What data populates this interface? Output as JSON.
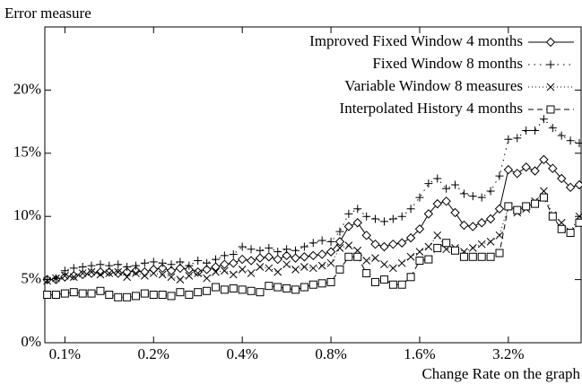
{
  "chart_data": {
    "type": "line",
    "y_label": "Error measure",
    "x_label": "Change Rate on the graph",
    "x_log": true,
    "xlim": [
      0.0855,
      5.65
    ],
    "ylim": [
      0,
      25
    ],
    "xticks": [
      {
        "value": 0.1,
        "label": "0.1%"
      },
      {
        "value": 0.2,
        "label": "0.2%"
      },
      {
        "value": 0.4,
        "label": "0.4%"
      },
      {
        "value": 0.8,
        "label": "0.8%"
      },
      {
        "value": 1.6,
        "label": "1.6%"
      },
      {
        "value": 3.2,
        "label": "3.2%"
      }
    ],
    "yticks": [
      {
        "value": 0,
        "label": "0%"
      },
      {
        "value": 5,
        "label": "5%"
      },
      {
        "value": 10,
        "label": "10%"
      },
      {
        "value": 15,
        "label": "15%"
      },
      {
        "value": 20,
        "label": "20%"
      }
    ],
    "legend": "top-right",
    "x": [
      0.0871,
      0.0933,
      0.1,
      0.1072,
      0.1149,
      0.1231,
      0.132,
      0.1414,
      0.1516,
      0.1625,
      0.1741,
      0.1866,
      0.2,
      0.2144,
      0.2297,
      0.2462,
      0.2639,
      0.2828,
      0.3031,
      0.3249,
      0.3482,
      0.3732,
      0.4,
      0.4287,
      0.4595,
      0.4925,
      0.5278,
      0.5657,
      0.6063,
      0.6498,
      0.6964,
      0.7464,
      0.8,
      0.8574,
      0.919,
      0.9849,
      1.056,
      1.131,
      1.213,
      1.3,
      1.393,
      1.493,
      1.6,
      1.715,
      1.838,
      1.97,
      2.111,
      2.263,
      2.425,
      2.599,
      2.786,
      2.986,
      3.2,
      3.43,
      3.676,
      3.94,
      4.222,
      4.525,
      4.85,
      5.198,
      5.571
    ],
    "series": [
      {
        "name": "Improved Fixed Window 4 months",
        "color": "#000000",
        "marker": "diamond",
        "line_style": "solid",
        "values": [
          5.0,
          5.0,
          5.2,
          5.3,
          5.4,
          5.5,
          5.6,
          5.6,
          5.5,
          5.6,
          5.7,
          5.6,
          5.8,
          5.9,
          5.7,
          5.9,
          5.8,
          5.6,
          5.8,
          6.0,
          6.2,
          6.3,
          6.6,
          6.5,
          6.7,
          6.8,
          6.6,
          6.9,
          6.7,
          6.8,
          6.9,
          7.0,
          7.2,
          8.0,
          9.2,
          9.5,
          8.5,
          7.8,
          7.6,
          7.8,
          7.9,
          8.3,
          9.0,
          10.2,
          11.0,
          11.2,
          10.3,
          9.3,
          9.2,
          9.5,
          9.8,
          10.6,
          13.7,
          13.4,
          13.9,
          13.6,
          14.5,
          13.8,
          13.0,
          12.3,
          12.5
        ]
      },
      {
        "name": "Fixed Window 8 months",
        "color": "#000000",
        "marker": "plus",
        "line_style": "dotted",
        "values": [
          5.0,
          5.1,
          5.7,
          5.9,
          6.0,
          6.1,
          6.2,
          6.1,
          6.2,
          6.0,
          6.1,
          6.3,
          6.4,
          6.3,
          6.2,
          6.4,
          6.1,
          6.5,
          6.3,
          6.6,
          6.9,
          7.0,
          7.6,
          7.4,
          7.3,
          7.5,
          7.2,
          7.4,
          7.3,
          7.6,
          7.9,
          8.1,
          8.0,
          8.8,
          10.2,
          10.6,
          10.0,
          9.8,
          9.6,
          9.8,
          10.0,
          10.6,
          11.5,
          12.6,
          13.0,
          12.2,
          12.5,
          11.8,
          11.6,
          11.5,
          12.0,
          13.2,
          16.1,
          16.2,
          16.8,
          16.8,
          17.7,
          17.0,
          16.4,
          16.0,
          15.8
        ]
      },
      {
        "name": "Variable Window 8 measures",
        "color": "#000000",
        "marker": "cross",
        "line_style": "fine-dotted",
        "values": [
          4.9,
          5.1,
          5.3,
          5.2,
          5.5,
          5.6,
          5.4,
          5.5,
          5.6,
          5.2,
          5.5,
          5.3,
          5.5,
          5.4,
          5.2,
          5.0,
          5.3,
          5.5,
          5.1,
          5.6,
          5.7,
          5.4,
          5.8,
          5.5,
          6.0,
          5.9,
          5.6,
          6.2,
          5.8,
          6.0,
          5.9,
          6.1,
          6.3,
          7.5,
          7.7,
          7.3,
          6.5,
          6.7,
          6.2,
          5.9,
          6.3,
          6.8,
          7.2,
          7.6,
          8.5,
          7.4,
          7.5,
          7.2,
          7.5,
          7.8,
          8.0,
          8.5,
          10.8,
          10.3,
          10.6,
          11.2,
          12.0,
          10.1,
          9.5,
          8.8,
          10.0
        ]
      },
      {
        "name": "Interpolated History 4 months",
        "color": "#000000",
        "marker": "square",
        "line_style": "dashed",
        "values": [
          3.8,
          3.8,
          3.9,
          4.0,
          3.9,
          3.9,
          4.1,
          3.8,
          3.6,
          3.6,
          3.7,
          3.9,
          3.8,
          3.8,
          3.7,
          4.0,
          3.8,
          4.0,
          4.1,
          4.4,
          4.2,
          4.3,
          4.2,
          4.1,
          4.0,
          4.5,
          4.4,
          4.3,
          4.2,
          4.4,
          4.6,
          4.7,
          4.8,
          5.8,
          6.8,
          6.8,
          5.5,
          4.8,
          5.0,
          4.6,
          4.6,
          5.2,
          6.5,
          6.6,
          7.5,
          7.9,
          7.3,
          6.8,
          6.8,
          6.8,
          6.8,
          7.1,
          10.8,
          10.5,
          10.8,
          11.0,
          11.5,
          10.0,
          9.0,
          8.7,
          9.5
        ]
      }
    ]
  }
}
